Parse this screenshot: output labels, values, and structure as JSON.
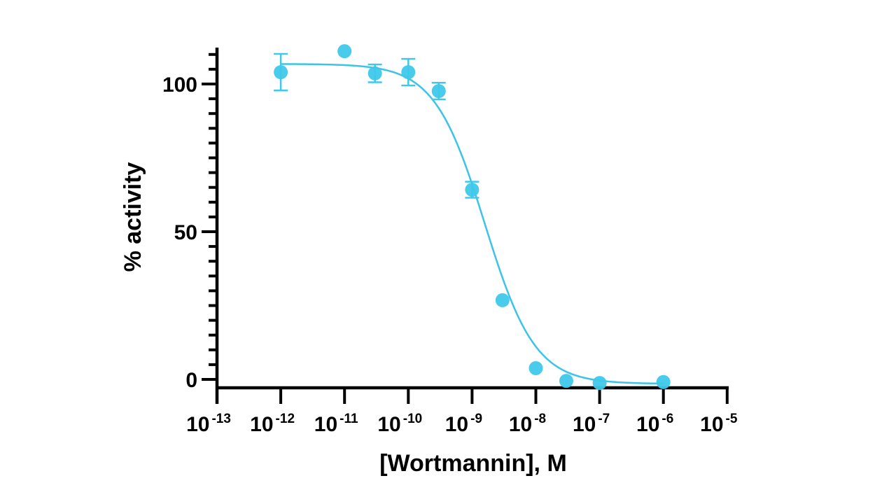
{
  "chart_data": {
    "type": "scatter",
    "title": "",
    "xlabel": "[Wortmannin], M",
    "ylabel": "% activity",
    "xscale": "log10",
    "xlim": [
      1e-13,
      1e-05
    ],
    "ylim": [
      -3,
      110
    ],
    "x_ticks": [
      {
        "base": "10",
        "exp": "-13",
        "value": 1e-13
      },
      {
        "base": "10",
        "exp": "-12",
        "value": 1e-12
      },
      {
        "base": "10",
        "exp": "-11",
        "value": 1e-11
      },
      {
        "base": "10",
        "exp": "-10",
        "value": 1e-10
      },
      {
        "base": "10",
        "exp": "-9",
        "value": 1e-09
      },
      {
        "base": "10",
        "exp": "-8",
        "value": 1e-08
      },
      {
        "base": "10",
        "exp": "-7",
        "value": 1e-07
      },
      {
        "base": "10",
        "exp": "-6",
        "value": 1e-06
      },
      {
        "base": "10",
        "exp": "-5",
        "value": 1e-05
      }
    ],
    "y_major_ticks": [
      0,
      50,
      100
    ],
    "y_minor_step": 5,
    "grid": false,
    "legend": null,
    "series": [
      {
        "name": "Wortmannin",
        "color": "#3FC8EA",
        "marker": "circle",
        "points": [
          {
            "x": 1e-12,
            "y": 104.0,
            "err": 6.2
          },
          {
            "x": 1e-11,
            "y": 111.1,
            "err": 0
          },
          {
            "x": 3e-11,
            "y": 103.6,
            "err": 3.0
          },
          {
            "x": 1e-10,
            "y": 104.0,
            "err": 4.5
          },
          {
            "x": 3e-10,
            "y": 97.6,
            "err": 2.8
          },
          {
            "x": 1e-09,
            "y": 64.2,
            "err": 2.7
          },
          {
            "x": 3e-09,
            "y": 26.8,
            "err": 0
          },
          {
            "x": 1e-08,
            "y": 3.8,
            "err": 0
          },
          {
            "x": 3e-08,
            "y": -0.5,
            "err": 0
          },
          {
            "x": 1e-07,
            "y": -1.2,
            "err": 0
          },
          {
            "x": 1e-06,
            "y": -0.9,
            "err": 0
          }
        ],
        "fit": {
          "model": "four-parameter logistic",
          "top": 106.8,
          "bottom": -1.5,
          "log_ic50": -8.8,
          "hill_slope": -1.1,
          "x_range": [
            1e-12,
            1e-06
          ]
        }
      }
    ]
  },
  "colors": {
    "series": "#3FC8EA",
    "curve": "#3CC4E8",
    "axis": "#000000"
  }
}
